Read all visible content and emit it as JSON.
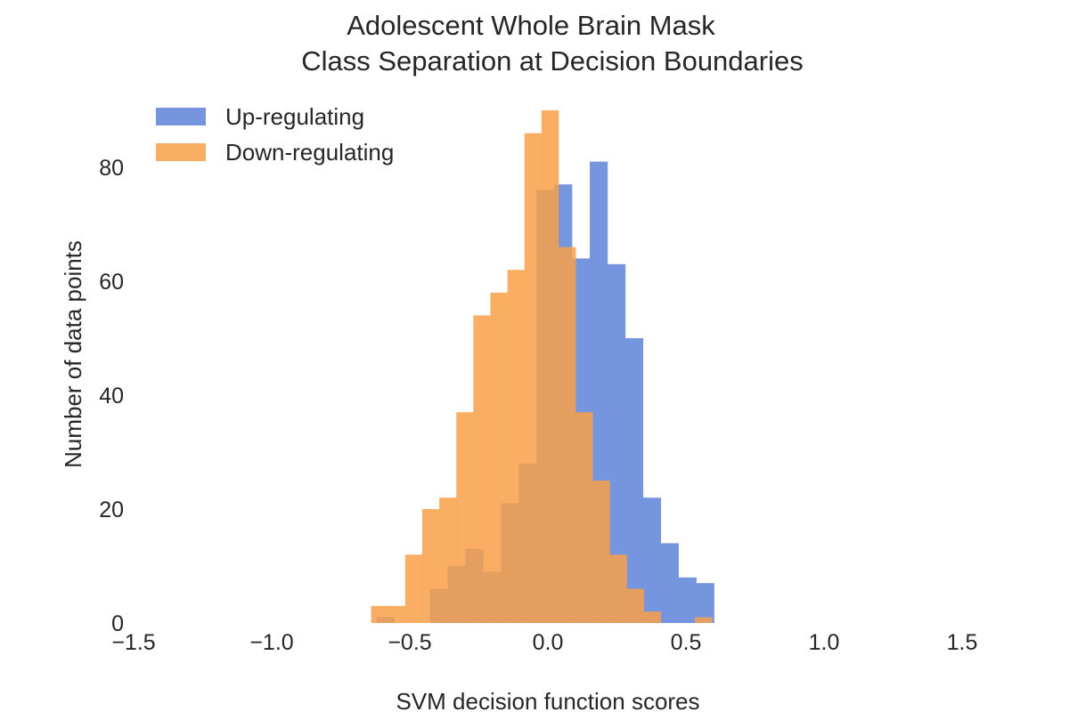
{
  "chart_data": {
    "type": "histogram",
    "title": "Adolescent Whole Brain Mask",
    "subtitle": "Class Separation at Decision Boundaries",
    "xlabel": "SVM decision function scores",
    "ylabel": "Number of data points",
    "xlim": [
      -1.5,
      1.5
    ],
    "ylim": [
      0,
      90
    ],
    "x_ticks": [
      -1.5,
      -1.0,
      -0.5,
      0.0,
      0.5,
      1.0,
      1.5
    ],
    "x_tick_labels": [
      "−1.5",
      "−1.0",
      "−0.5",
      "0.0",
      "0.5",
      "1.0",
      "1.5"
    ],
    "y_ticks": [
      0,
      20,
      40,
      60,
      80
    ],
    "y_tick_labels": [
      "0",
      "20",
      "40",
      "60",
      "80"
    ],
    "grid": false,
    "legend_position": "top-left",
    "series": [
      {
        "name": "Up-regulating",
        "color": "#6a8ddb",
        "bin_start": -0.62,
        "bin_width": 0.0643,
        "counts": [
          1,
          0,
          0,
          6,
          10,
          13,
          9,
          21,
          28,
          76,
          77,
          64,
          81,
          63,
          50,
          22,
          14,
          8,
          7
        ]
      },
      {
        "name": "Down-regulating",
        "color": "#f8a049",
        "bin_start": -0.64,
        "bin_width": 0.0617,
        "counts": [
          3,
          3,
          12,
          20,
          22,
          37,
          54,
          58,
          62,
          86,
          90,
          66,
          37,
          25,
          12,
          6,
          2,
          0,
          0,
          1
        ]
      }
    ]
  }
}
